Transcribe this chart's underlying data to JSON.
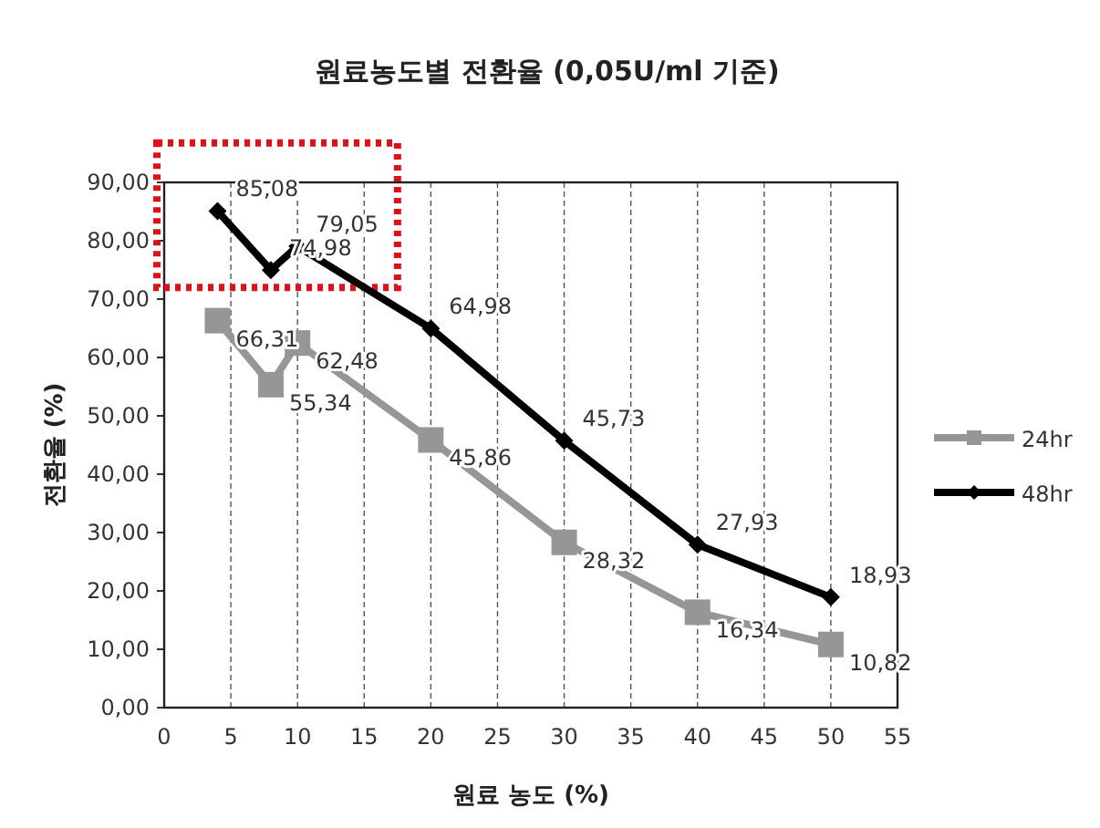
{
  "chart_data": {
    "type": "line",
    "title": "원료농도별 전환율 (0,05U/ml 기준)",
    "xlabel": "원료 농도 (%)",
    "ylabel": "전환율 (%)",
    "x": [
      4,
      8,
      10,
      20,
      30,
      40,
      50
    ],
    "series": [
      {
        "name": "24hr",
        "color": "#969696",
        "marker": "square",
        "values": [
          66.31,
          55.34,
          62.48,
          45.86,
          28.32,
          16.34,
          10.82
        ],
        "value_labels": [
          "66,31",
          "55,34",
          "62,48",
          "45,86",
          "28,32",
          "16,34",
          "10,82"
        ]
      },
      {
        "name": "48hr",
        "color": "#000000",
        "marker": "diamond",
        "values": [
          85.08,
          74.98,
          79.05,
          64.98,
          45.73,
          27.93,
          18.93
        ],
        "value_labels": [
          "85,08",
          "74,98",
          "79,05",
          "64,98",
          "45,73",
          "27,93",
          "18,93"
        ]
      }
    ],
    "xlim": [
      0,
      55
    ],
    "xticks": [
      0,
      5,
      10,
      15,
      20,
      25,
      30,
      35,
      40,
      45,
      50,
      55
    ],
    "ylim": [
      0,
      90
    ],
    "yticks": [
      {
        "value": 0,
        "label": "0,00"
      },
      {
        "value": 10,
        "label": "10,00"
      },
      {
        "value": 20,
        "label": "20,00"
      },
      {
        "value": 30,
        "label": "30,00"
      },
      {
        "value": 40,
        "label": "40,00"
      },
      {
        "value": 50,
        "label": "50,00"
      },
      {
        "value": 60,
        "label": "60,00"
      },
      {
        "value": 70,
        "label": "70,00"
      },
      {
        "value": 80,
        "label": "80,00"
      },
      {
        "value": 90,
        "label": "90,00"
      }
    ],
    "grid": "x",
    "legend": "right",
    "line_style": "solid"
  }
}
